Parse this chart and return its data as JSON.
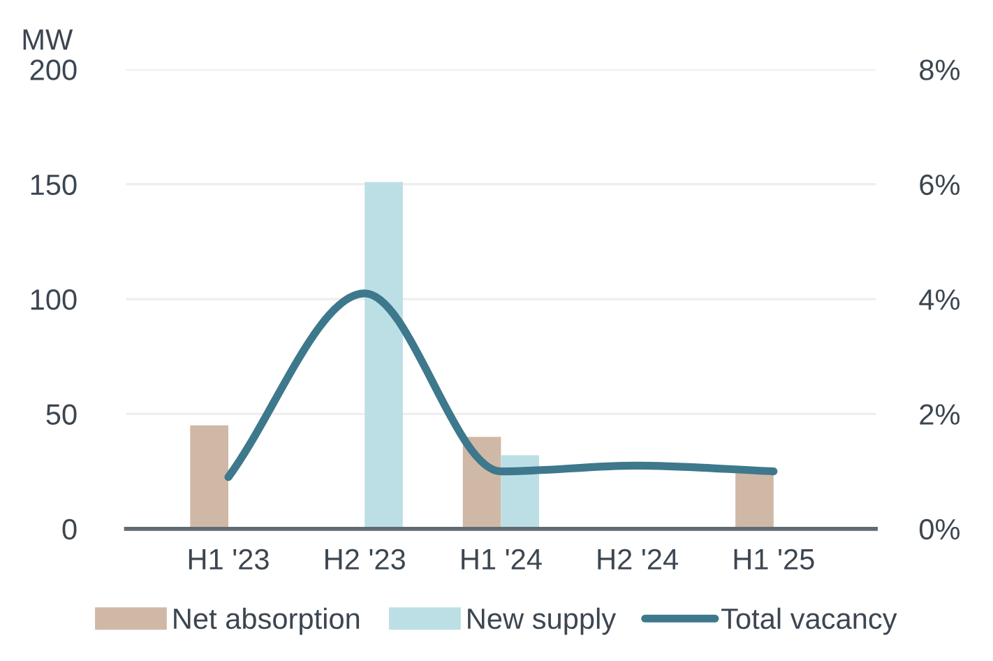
{
  "chart_data": {
    "type": "bar",
    "ylabel": "MW",
    "categories": [
      "H1 '23",
      "H2 '23",
      "H1 '24",
      "H2 '24",
      "H1 '25"
    ],
    "series": [
      {
        "name": "Net absorption",
        "color": "#d0b8a6",
        "values": [
          45,
          null,
          40,
          null,
          25
        ]
      },
      {
        "name": "New supply",
        "color": "#bcdfe6",
        "values": [
          null,
          151,
          32,
          null,
          null
        ]
      },
      {
        "name": "Total vacancy",
        "type": "line",
        "axis": "y2",
        "color": "#3e788c",
        "values": [
          0.9,
          4.1,
          1.0,
          1.1,
          1.0
        ]
      }
    ],
    "ylim": [
      0,
      200
    ],
    "yticks": [
      0,
      50,
      100,
      150,
      200
    ],
    "y2lim": [
      0,
      8
    ],
    "y2ticks": [
      {
        "value": 0,
        "label": "0%"
      },
      {
        "value": 2,
        "label": "2%"
      },
      {
        "value": 4,
        "label": "4%"
      },
      {
        "value": 6,
        "label": "6%"
      },
      {
        "value": 8,
        "label": "8%"
      }
    ],
    "grid": "y",
    "legend": "bottom",
    "marker": "none",
    "line_style": "solid"
  }
}
